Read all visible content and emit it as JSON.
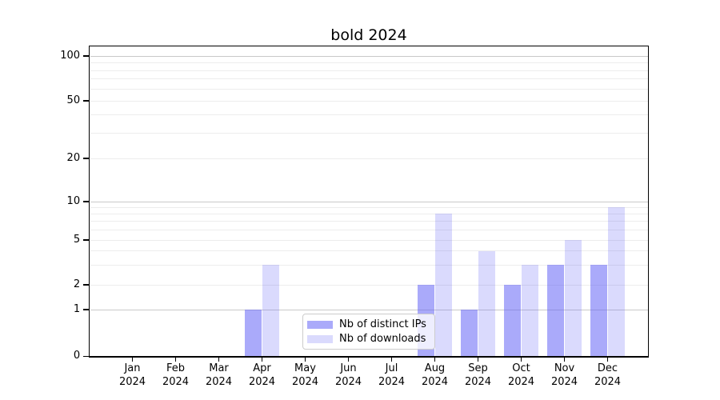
{
  "chart_data": {
    "type": "bar",
    "title": "bold 2024",
    "categories": [
      "Jan 2024",
      "Feb 2024",
      "Mar 2024",
      "Apr 2024",
      "May 2024",
      "Jun 2024",
      "Jul 2024",
      "Aug 2024",
      "Sep 2024",
      "Oct 2024",
      "Nov 2024",
      "Dec 2024"
    ],
    "series": [
      {
        "name": "Nb of distinct IPs",
        "key": "distinct-ips",
        "color": "rgba(100,100,245,0.55)",
        "values": [
          0,
          0,
          0,
          1,
          0,
          0,
          0,
          2,
          1,
          2,
          3,
          3
        ]
      },
      {
        "name": "Nb of downloads",
        "key": "downloads",
        "color": "rgba(100,100,245,0.24)",
        "values": [
          0,
          0,
          0,
          3,
          0,
          0,
          0,
          8,
          4,
          3,
          5,
          9
        ]
      }
    ],
    "xlabel": "",
    "ylabel": "",
    "yscale": "symlog",
    "ylim": [
      0,
      100
    ],
    "y_tick_labels": [
      "0",
      "1",
      "2",
      "5",
      "10",
      "20",
      "50",
      "100"
    ],
    "y_tick_values": [
      0,
      1,
      2,
      5,
      10,
      20,
      50,
      100
    ],
    "major_gridline_values": [
      1,
      10,
      100
    ],
    "minor_gridline_values": [
      2,
      3,
      4,
      5,
      6,
      7,
      8,
      9,
      20,
      30,
      40,
      50,
      60,
      70,
      80,
      90
    ],
    "grid": true,
    "legend_position": "lower-center-left inside plot",
    "colors": {
      "bar_distinct_ips": "rgba(100,100,245,0.55)",
      "bar_downloads": "rgba(100,100,245,0.24)",
      "major_grid": "#c9c9c9",
      "minor_grid": "#ececec",
      "axis": "#000000",
      "text": "#000000",
      "legend_bg": "rgba(255,255,255,0.8)",
      "legend_border": "#cccccc"
    }
  }
}
